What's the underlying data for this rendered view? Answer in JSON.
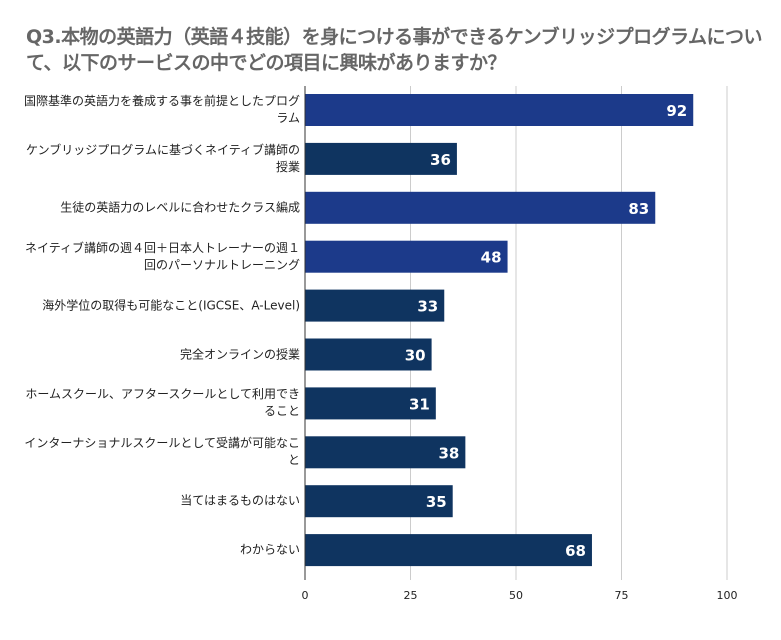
{
  "chart_data": {
    "type": "bar",
    "orientation": "horizontal",
    "title": "Q3.本物の英語力（英語４技能）を身につける事ができるケンブリッジプログラムについて、以下のサービスの中でどの項目に興味がありますか？",
    "categories": [
      "国際基準の英語力を養成する事を前提としたプログラム",
      "ケンブリッジプログラムに基づくネイティブ講師の授業",
      "生徒の英語力のレベルに合わせたクラス編成",
      "ネイティブ講師の週４回＋日本人トレーナーの週１回のパーソナルトレーニング",
      "海外学位の取得も可能なこと(IGCSE、A-Level)",
      "完全オンラインの授業",
      "ホームスクール、アフタースクールとして利用できること",
      "インターナショナルスクールとして受講が可能なこと",
      "当てはまるものはない",
      "わからない"
    ],
    "values": [
      92,
      36,
      83,
      48,
      33,
      30,
      31,
      38,
      35,
      68
    ],
    "bar_colors": [
      "#1c3a8a",
      "#0f3460",
      "#1c3a8a",
      "#1c3a8a",
      "#0f3460",
      "#0f3460",
      "#0f3460",
      "#0f3460",
      "#0f3460",
      "#0f3460"
    ],
    "xlim": [
      0,
      100
    ],
    "xticks": [
      "0",
      "25",
      "50",
      "75",
      "100"
    ],
    "xlabel": "",
    "ylabel": "",
    "grid": true,
    "legend": "none",
    "colors": {
      "label_text": "#222222",
      "value_text": "#ffffff",
      "grid": "#cccccc",
      "axis": "#333333"
    }
  }
}
